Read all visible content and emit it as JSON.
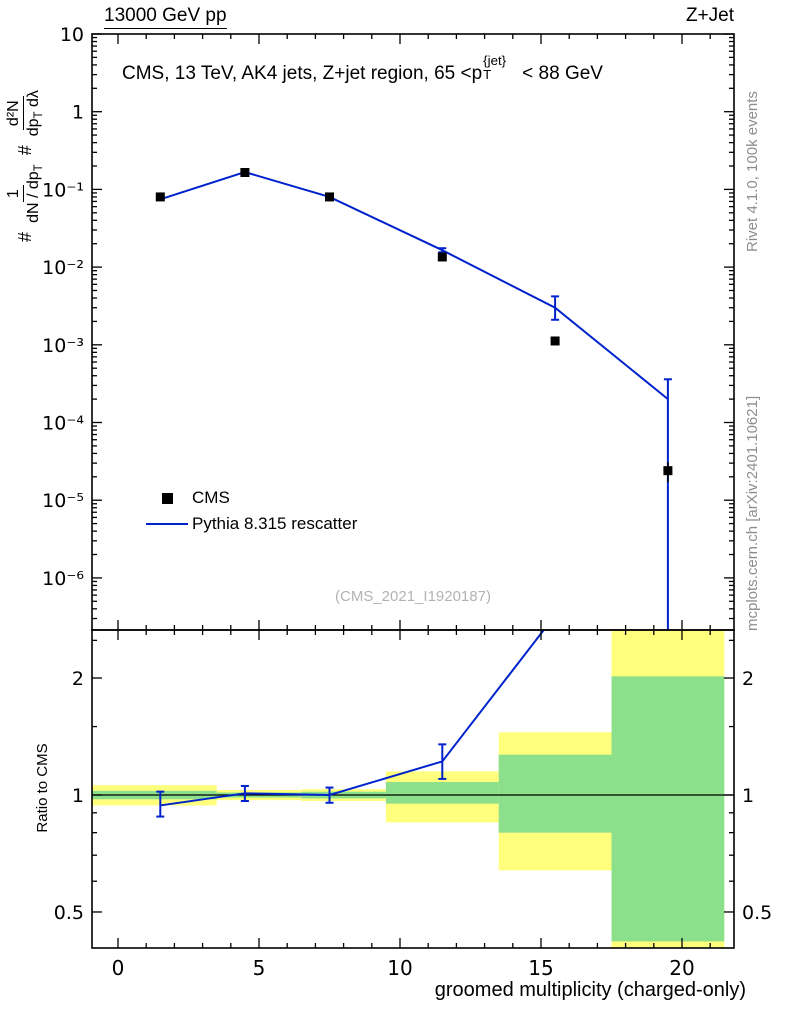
{
  "header": {
    "top_left_title": "13000 GeV pp",
    "top_right_title": "Z+Jet",
    "inner_title": {
      "prefix": "CMS, 13 TeV, AK4 jets, Z+jet region, 65 <p",
      "sup": "{jet}",
      "sub": "T",
      "suffix": "< 88 GeV"
    }
  },
  "axes": {
    "ylabel": {
      "hash1": "#",
      "f1num": "1",
      "f1den": "dN / dp",
      "f1den_sub": "T",
      "hash2": "#",
      "f2num": "d²N",
      "f2den_a": "dp",
      "f2den_sub": "T",
      "f2den_b": " dλ"
    },
    "ratio_ylabel": "Ratio to CMS",
    "xlabel": "groomed multiplicity (charged-only)"
  },
  "legend": {
    "items": [
      {
        "label": "CMS",
        "marker": "square",
        "color": "#000000"
      },
      {
        "label": "Pythia 8.315 rescatter",
        "marker": "line",
        "color": "#0022cc"
      }
    ]
  },
  "watermark": "(CMS_2021_I1920187)",
  "sidebar": {
    "top_text": "Rivet 4.1.0,  100k events",
    "bottom_text": "mcplots.cern.ch [arXiv:2401.10621]"
  },
  "chart_data": {
    "type": "line",
    "title": "CMS, 13 TeV, AK4 jets, Z+jet region, 65 < pT{jet} < 88 GeV",
    "xlabel": "groomed multiplicity (charged-only)",
    "xlim": [
      -0.92,
      21.84
    ],
    "x_ticks": [
      0,
      5,
      10,
      15,
      20
    ],
    "x_tick_labels": [
      "0",
      "5",
      "10",
      "15",
      "20"
    ],
    "main_panel": {
      "yscale": "log",
      "ylim": [
        2.1e-07,
        10
      ],
      "y_ticks": [
        10,
        1,
        0.1,
        0.01,
        0.001,
        0.0001,
        1e-05,
        1e-06
      ],
      "y_tick_labels": [
        "10",
        "1",
        "10⁻¹",
        "10⁻²",
        "10⁻³",
        "10⁻⁴",
        "10⁻⁵",
        "10⁻⁶"
      ],
      "x": [
        1.5,
        4.5,
        7.5,
        11.5,
        15.5,
        19.5
      ],
      "series": [
        {
          "name": "CMS",
          "type": "scatter",
          "marker": "square",
          "color": "#000000",
          "values": [
            0.08,
            0.165,
            0.08,
            0.0135,
            0.00112,
            2.4e-05
          ],
          "yerr": [
            0.004,
            0.006,
            0.004,
            0.0012,
            0.00012,
            7e-06
          ]
        },
        {
          "name": "Pythia 8.315 rescatter",
          "type": "line",
          "color": "#0022cc",
          "values": [
            0.0745,
            0.167,
            0.08,
            0.0165,
            0.003,
            0.0002
          ],
          "yerr_lo": [
            0,
            0,
            0,
            0.001,
            0.0009,
            0.00019999
          ],
          "yerr_hi": [
            0,
            0,
            0,
            0.001,
            0.0012,
            0.00016
          ]
        }
      ]
    },
    "ratio_panel": {
      "yscale": "log",
      "ylim": [
        0.403,
        2.66
      ],
      "y_ticks": [
        2,
        1,
        0.5
      ],
      "y_tick_labels": [
        "2",
        "1",
        "0.5"
      ],
      "reference_line": 1,
      "x": [
        1.5,
        4.5,
        7.5,
        11.5,
        15.5,
        19.5
      ],
      "values": [
        0.94,
        1.01,
        1.0,
        1.22,
        2.9,
        8.3
      ],
      "yerr_lo": [
        0.06,
        0.045,
        0.045,
        0.12,
        0,
        0
      ],
      "yerr_hi": [
        0.08,
        0.045,
        0.045,
        0.13,
        0,
        0
      ],
      "bands": [
        {
          "x0": -0.92,
          "x1": 3.5,
          "yellow": [
            0.94,
            1.06
          ],
          "green": [
            0.975,
            1.025
          ]
        },
        {
          "x0": 3.5,
          "x1": 6.5,
          "yellow": [
            0.97,
            1.03
          ],
          "green": [
            0.985,
            1.015
          ]
        },
        {
          "x0": 6.5,
          "x1": 9.5,
          "yellow": [
            0.965,
            1.035
          ],
          "green": [
            0.98,
            1.02
          ]
        },
        {
          "x0": 9.5,
          "x1": 13.5,
          "yellow": [
            0.85,
            1.15
          ],
          "green": [
            0.95,
            1.08
          ]
        },
        {
          "x0": 13.5,
          "x1": 17.5,
          "yellow": [
            0.64,
            1.45
          ],
          "green": [
            0.8,
            1.27
          ]
        },
        {
          "x0": 17.5,
          "x1": 21.5,
          "yellow": [
            0.403,
            2.66
          ],
          "green": [
            0.42,
            2.02
          ]
        }
      ],
      "band_colors": {
        "yellow": "#ffff7d",
        "green": "#8ce08c"
      }
    }
  }
}
